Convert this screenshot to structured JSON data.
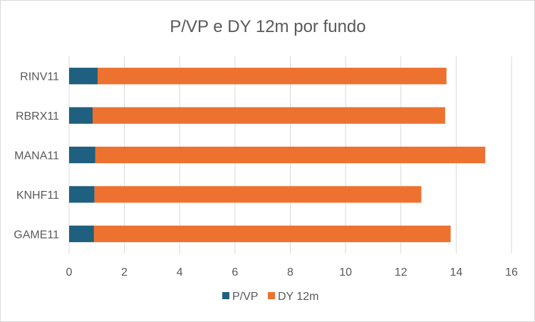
{
  "chart_data": {
    "type": "bar",
    "orientation": "horizontal",
    "stacked": true,
    "title": "P/VP e DY 12m por fundo",
    "xlabel": "",
    "ylabel": "",
    "categories": [
      "GAME11",
      "KNHF11",
      "MANA11",
      "RBRX11",
      "RINV11"
    ],
    "series": [
      {
        "name": "P/VP",
        "color": "#1f5f7f",
        "values": [
          0.9,
          0.92,
          0.95,
          0.85,
          1.03
        ]
      },
      {
        "name": "DY 12m",
        "color": "#ed7230",
        "values": [
          12.9,
          11.82,
          14.1,
          12.75,
          12.62
        ]
      }
    ],
    "xlim": [
      0,
      16
    ],
    "xticks": [
      "0",
      "2",
      "4",
      "6",
      "8",
      "10",
      "12",
      "14",
      "16"
    ],
    "grid": true,
    "legend": "bottom"
  }
}
